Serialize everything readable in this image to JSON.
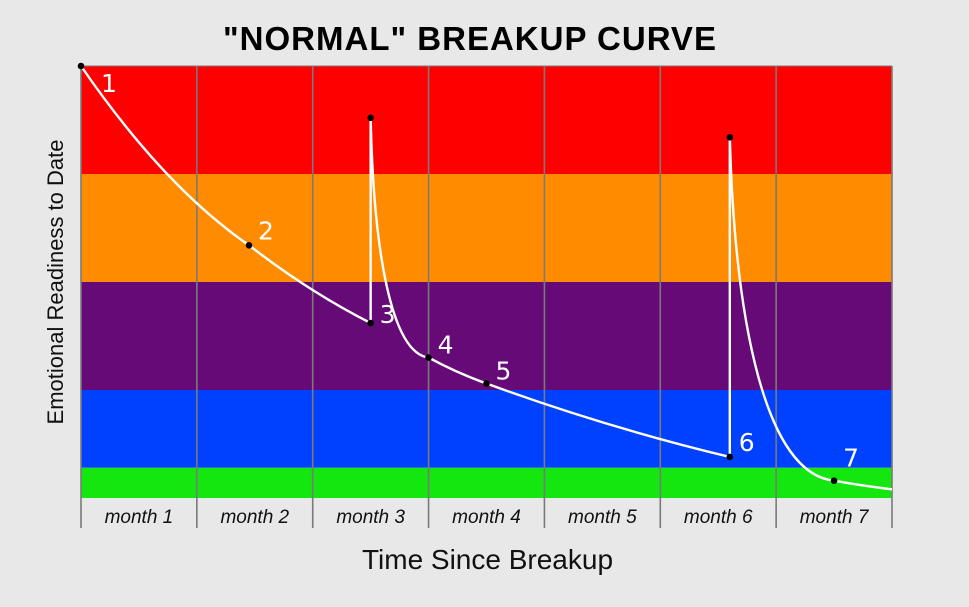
{
  "chart_data": {
    "type": "line",
    "title": "\"NORMAL\"  BREAKUP CURVE",
    "xlabel": "Time Since Breakup",
    "ylabel": "Emotional Readiness to Date",
    "categories": [
      "month 1",
      "month 2",
      "month 3",
      "month 4",
      "month 5",
      "month 6",
      "month 7"
    ],
    "xlim": [
      0,
      7
    ],
    "ylim": [
      0,
      100
    ],
    "bands": [
      {
        "from": 75,
        "to": 100,
        "color": "#ff0000"
      },
      {
        "from": 50,
        "to": 75,
        "color": "#ff8c00"
      },
      {
        "from": 25,
        "to": 50,
        "color": "#660a78"
      },
      {
        "from": 7,
        "to": 25,
        "color": "#0040ff"
      },
      {
        "from": 0,
        "to": 7,
        "color": "#14e60f"
      }
    ],
    "series": [
      {
        "line_color": "#ffffff",
        "points": [
          {
            "x": 0.0,
            "y": 100.0,
            "label": "1"
          },
          {
            "x": 1.45,
            "y": 58.5,
            "label": "2"
          },
          {
            "x": 2.5,
            "y": 40.5,
            "label": "3"
          },
          {
            "x": 2.5,
            "y": 88.0,
            "label": ""
          },
          {
            "x": 3.0,
            "y": 32.5,
            "label": "4"
          },
          {
            "x": 3.5,
            "y": 26.5,
            "label": "5"
          },
          {
            "x": 5.6,
            "y": 9.5,
            "label": "6"
          },
          {
            "x": 5.6,
            "y": 83.5,
            "label": ""
          },
          {
            "x": 6.5,
            "y": 4.0,
            "label": "7"
          },
          {
            "x": 7.0,
            "y": 2.0,
            "label": ""
          }
        ]
      }
    ]
  }
}
